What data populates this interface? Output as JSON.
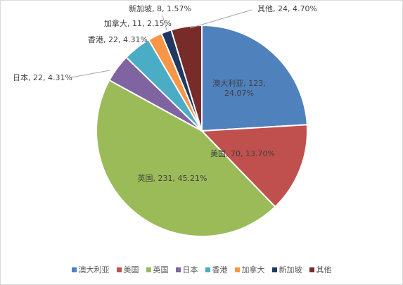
{
  "chart_data": {
    "type": "pie",
    "categories": [
      "澳大利亚",
      "美国",
      "英国",
      "日本",
      "香港",
      "加拿大",
      "新加坡",
      "其他"
    ],
    "values": [
      123,
      70,
      231,
      22,
      22,
      11,
      8,
      24
    ],
    "percents": [
      "24.07%",
      "13.70%",
      "45.21%",
      "4.31%",
      "4.31%",
      "2.15%",
      "1.57%",
      "4.70%"
    ],
    "colors": [
      "#4f81bd",
      "#c0504d",
      "#9bbb59",
      "#8064a2",
      "#4bacc6",
      "#f79646",
      "#1f3864",
      "#772c2a"
    ],
    "data_labels": [
      "澳大利亚, 123, 24.07%",
      "美国, 70, 13.70%",
      "英国, 231, 45.21%",
      "日本, 22, 4.31%",
      "香港, 22, 4.31%",
      "加拿大, 11, 2.15%",
      "新加坡, 8, 1.57%",
      "其他, 24, 4.70%"
    ],
    "legend_position": "bottom"
  }
}
